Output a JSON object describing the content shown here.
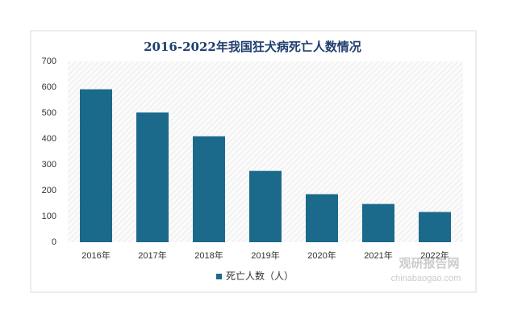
{
  "chart_data": {
    "type": "bar",
    "title": "2016-2022年我国狂犬病死亡人数情况",
    "categories": [
      "2016年",
      "2017年",
      "2018年",
      "2019年",
      "2020年",
      "2021年",
      "2022年"
    ],
    "series": [
      {
        "name": "死亡人数（人）",
        "color": "#1b6a8c",
        "values": [
          592,
          502,
          410,
          276,
          186,
          148,
          117
        ]
      }
    ],
    "ylim": [
      0,
      700
    ],
    "yticks": [
      0,
      100,
      200,
      300,
      400,
      500,
      600,
      700
    ],
    "grid": false,
    "legend": "bottom"
  },
  "watermark": {
    "name": "观研报告网",
    "url": "chinabaogao.com"
  }
}
